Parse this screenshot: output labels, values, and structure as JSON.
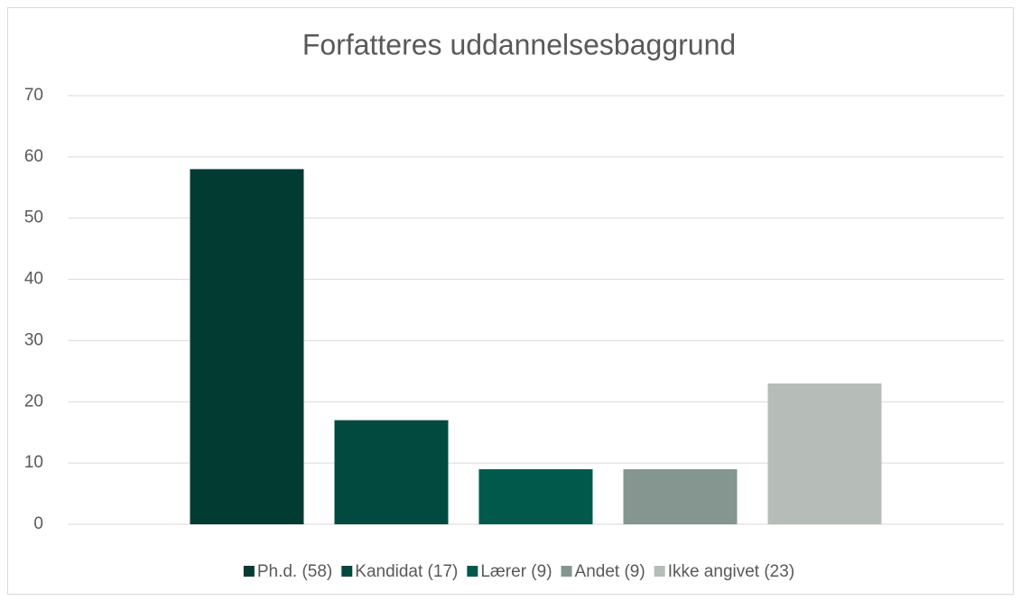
{
  "chart_data": {
    "type": "bar",
    "title": "Forfatteres uddannelsesbaggrund",
    "categories": [
      null
    ],
    "series": [
      {
        "name": "Ph.d. (58)",
        "color": "#023b31",
        "values": [
          58
        ]
      },
      {
        "name": "Kandidat (17)",
        "color": "#024a3f",
        "values": [
          17
        ]
      },
      {
        "name": "Lærer (9)",
        "color": "#01594b",
        "values": [
          9
        ]
      },
      {
        "name": "Andet (9)",
        "color": "#85958f",
        "values": [
          9
        ]
      },
      {
        "name": "Ikke angivet (23)",
        "color": "#b6bdb8",
        "values": [
          23
        ]
      }
    ],
    "ylim": [
      0,
      70
    ],
    "yticks": [
      0,
      10,
      20,
      30,
      40,
      50,
      60,
      70
    ],
    "grid": true,
    "legend": "bottom"
  }
}
